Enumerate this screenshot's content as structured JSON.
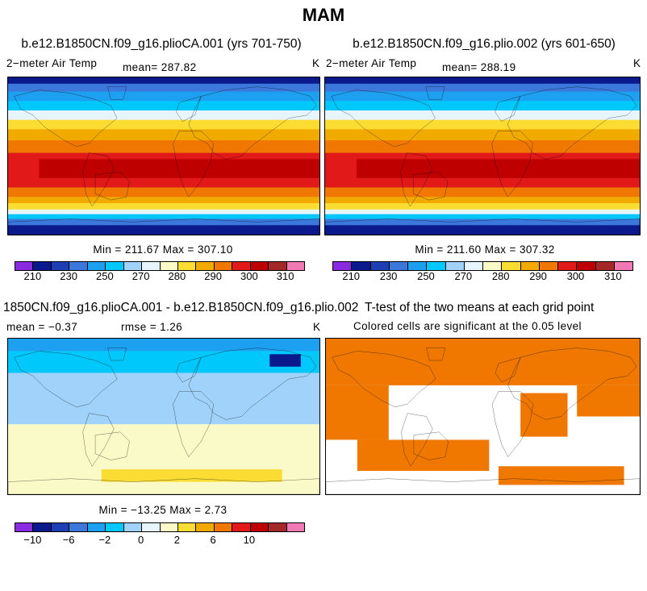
{
  "title": "MAM",
  "panels": {
    "p1": {
      "title": "b.e12.B1850CN.f09_g16.plioCA.001 (yrs 701-750)",
      "variable": "2−meter Air Temp",
      "mean_text": "mean=  287.82",
      "units": "K",
      "minmax_text": "Min = 211.67 Max = 307.10"
    },
    "p2": {
      "title": "b.e12.B1850CN.f09_g16.plio.002 (yrs 601-650)",
      "variable": "2−meter Air Temp",
      "mean_text": "mean=  288.19",
      "units": "K",
      "minmax_text": "Min = 211.60 Max = 307.32"
    },
    "p3": {
      "title": "1850CN.f09_g16.plioCA.001 - b.e12.B1850CN.f09_g16.plio.002",
      "mean_text": "mean =  −0.37",
      "rmse_text": "rmse =   1.26",
      "units": "K",
      "minmax_text": "Min = −13.25 Max =   2.73"
    },
    "p4": {
      "title": "T-test of the two means at each grid point",
      "subtitle": "Colored cells are significant at the 0.05 level"
    }
  },
  "colorbar_colors": [
    "#8A2BE2",
    "#0A1A8C",
    "#1E3FB4",
    "#3C78DC",
    "#1EA0F0",
    "#00C8FA",
    "#A0D2FA",
    "#E6F5FF",
    "#FAFAC8",
    "#FADC32",
    "#F0AA00",
    "#F07800",
    "#E11919",
    "#BE0000",
    "#A52828",
    "#F078B4"
  ],
  "ttest_color": "#F07800",
  "land_outline_color": "#000000",
  "chart_data": [
    {
      "type": "heatmap",
      "name": "plioCA.001 surface air temperature",
      "field": "2-meter Air Temp",
      "units": "K",
      "mean": 287.82,
      "min": 211.67,
      "max": 307.1,
      "colorbar_ticks": [
        "210",
        "230",
        "250",
        "270",
        "280",
        "290",
        "300",
        "310"
      ]
    },
    {
      "type": "heatmap",
      "name": "plio.002 surface air temperature",
      "field": "2-meter Air Temp",
      "units": "K",
      "mean": 288.19,
      "min": 211.6,
      "max": 307.32,
      "colorbar_ticks": [
        "210",
        "230",
        "250",
        "270",
        "280",
        "290",
        "300",
        "310"
      ]
    },
    {
      "type": "heatmap",
      "name": "difference plioCA.001 - plio.002",
      "units": "K",
      "mean": -0.37,
      "rmse": 1.26,
      "min": -13.25,
      "max": 2.73,
      "colorbar_ticks": [
        "−10",
        "−6",
        "−2",
        "0",
        "2",
        "6",
        "10"
      ]
    },
    {
      "type": "heatmap",
      "name": "t-test significance",
      "significance_level": 0.05
    }
  ]
}
